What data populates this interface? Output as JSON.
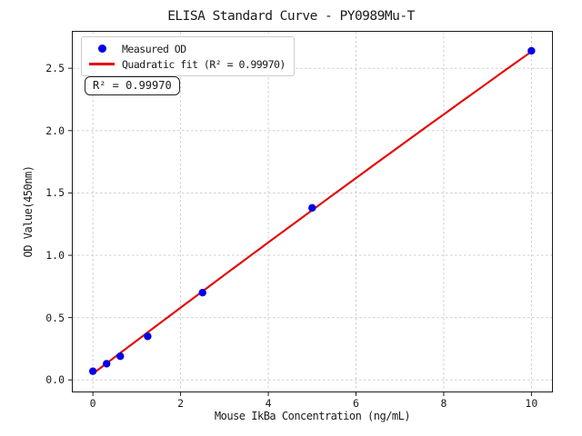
{
  "chart_data": {
    "type": "scatter",
    "title": "ELISA Standard Curve - PY0989Mu-T",
    "xlabel": "Mouse IkBa Concentration (ng/mL)",
    "ylabel": "OD Value(450nm)",
    "xlim": [
      -0.48,
      10.49
    ],
    "ylim": [
      -0.1,
      2.8
    ],
    "xticks": [
      0,
      2,
      4,
      6,
      8,
      10
    ],
    "xticklabels": [
      "0",
      "2",
      "4",
      "6",
      "8",
      "10"
    ],
    "yticks": [
      0.0,
      0.5,
      1.0,
      1.5,
      2.0,
      2.5
    ],
    "yticklabels": [
      "0.0",
      "0.5",
      "1.0",
      "1.5",
      "2.0",
      "2.5"
    ],
    "grid": true,
    "grid_style": "dashed",
    "grid_color": "#c8c8c8",
    "legend_position": "upper-left",
    "series": [
      {
        "name": "Measured OD",
        "type": "scatter",
        "color": "#0000e6",
        "x": [
          0,
          0.313,
          0.625,
          1.25,
          2.5,
          5,
          10
        ],
        "y": [
          0.07,
          0.13,
          0.19,
          0.35,
          0.7,
          1.38,
          2.64
        ]
      },
      {
        "name": "Quadratic fit (R² = 0.99970)",
        "type": "line",
        "color": "#e60000",
        "x_range": [
          0,
          10
        ],
        "fit_coeffs": [
          0.05,
          0.2664,
          -0.0008
        ]
      }
    ],
    "annotation": "R² = 0.99970",
    "r_squared": 0.9997
  }
}
